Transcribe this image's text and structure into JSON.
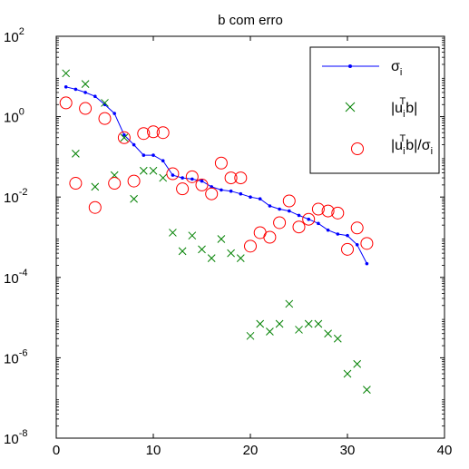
{
  "chart_data": {
    "type": "scatter",
    "title": "b com erro",
    "xlabel": "",
    "ylabel": "",
    "xlim": [
      0,
      40
    ],
    "ylim": [
      1e-08,
      100
    ],
    "yscale": "log",
    "grid": false,
    "legend_position": "top-right",
    "x_ticks": [
      "0",
      "10",
      "20",
      "30",
      "40"
    ],
    "y_ticks": [
      {
        "base": "10",
        "exp": "2",
        "value": 100
      },
      {
        "base": "10",
        "exp": "0",
        "value": 1
      },
      {
        "base": "10",
        "exp": "-2",
        "value": 0.01
      },
      {
        "base": "10",
        "exp": "-4",
        "value": 0.0001
      },
      {
        "base": "10",
        "exp": "-6",
        "value": 1e-06
      },
      {
        "base": "10",
        "exp": "-8",
        "value": 1e-08
      }
    ],
    "legend": {
      "sigma": {
        "main": "σ",
        "sub": "i"
      },
      "utb": {
        "pre": "|u",
        "sub": "i",
        "sup": "T",
        "post": "b|"
      },
      "ratio": {
        "pre": "|u",
        "sub": "i",
        "sup": "T",
        "mid": "b|/σ",
        "sub2": "i"
      }
    },
    "series": [
      {
        "name": "σi",
        "style": "line-dot",
        "color": "#0000ff",
        "x": [
          1,
          2,
          3,
          4,
          5,
          6,
          7,
          8,
          9,
          10,
          11,
          12,
          13,
          14,
          15,
          16,
          17,
          18,
          19,
          20,
          21,
          22,
          23,
          24,
          25,
          26,
          27,
          28,
          29,
          30,
          31,
          32
        ],
        "y": [
          5.5,
          4.8,
          4.0,
          3.2,
          2.0,
          1.2,
          0.35,
          0.2,
          0.11,
          0.11,
          0.08,
          0.035,
          0.03,
          0.028,
          0.025,
          0.018,
          0.015,
          0.014,
          0.012,
          0.01,
          0.009,
          0.006,
          0.005,
          0.0045,
          0.0035,
          0.0028,
          0.0022,
          0.0015,
          0.0012,
          0.0011,
          0.00065,
          0.00022
        ]
      },
      {
        "name": "|uiTb|",
        "style": "x-marker",
        "color": "#008000",
        "x": [
          1,
          2,
          3,
          4,
          5,
          6,
          7,
          8,
          9,
          10,
          11,
          12,
          13,
          14,
          15,
          16,
          17,
          18,
          19,
          20,
          21,
          22,
          23,
          24,
          25,
          26,
          27,
          28,
          29,
          30,
          31,
          32
        ],
        "y": [
          12,
          0.12,
          6.5,
          0.018,
          2.2,
          0.035,
          0.3,
          0.009,
          0.045,
          0.045,
          0.03,
          0.0013,
          0.00045,
          0.0011,
          0.0005,
          0.0003,
          0.0009,
          0.0004,
          0.0003,
          3.5e-06,
          7e-06,
          4.5e-06,
          7e-06,
          2.2e-05,
          5e-06,
          7e-06,
          7e-06,
          4e-06,
          3e-06,
          4e-07,
          7e-07,
          1.6e-07
        ]
      },
      {
        "name": "|uiTb|/σi",
        "style": "o-marker",
        "color": "#ff0000",
        "x": [
          1,
          2,
          3,
          4,
          5,
          6,
          7,
          8,
          9,
          10,
          11,
          12,
          13,
          14,
          15,
          16,
          17,
          18,
          19,
          20,
          21,
          22,
          23,
          24,
          25,
          26,
          27,
          28,
          29,
          30,
          31,
          32
        ],
        "y": [
          2.2,
          0.022,
          1.6,
          0.0055,
          0.9,
          0.022,
          0.3,
          0.025,
          0.38,
          0.42,
          0.4,
          0.038,
          0.016,
          0.032,
          0.02,
          0.012,
          0.07,
          0.03,
          0.03,
          0.0006,
          0.0013,
          0.001,
          0.0023,
          0.008,
          0.0018,
          0.0028,
          0.005,
          0.0045,
          0.004,
          0.0005,
          0.0017,
          0.0007
        ]
      }
    ]
  }
}
